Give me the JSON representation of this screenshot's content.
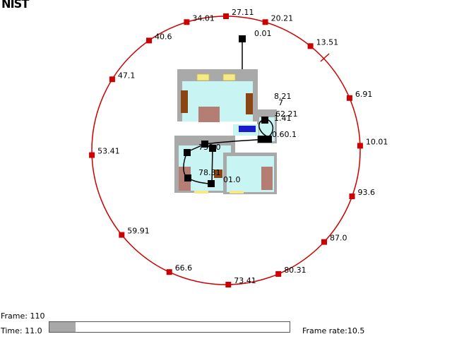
{
  "app": {
    "logo_text": "NIST"
  },
  "status": {
    "frame_prefix": "Frame: ",
    "frame": "110",
    "time_prefix": "Time: ",
    "time": "11.0",
    "frame_rate_prefix": "Frame rate:",
    "frame_rate": "10.5"
  },
  "slider": {
    "progress": 0.11
  },
  "ring": {
    "color": "#cc0000",
    "markers": [
      {
        "angle_deg": -90,
        "label": "27.11"
      },
      {
        "angle_deg": -73,
        "label": "20.21"
      },
      {
        "angle_deg": -51,
        "label": "13.51"
      },
      {
        "angle_deg": -23,
        "label": "6.91"
      },
      {
        "angle_deg": -2,
        "label": "10.01"
      },
      {
        "angle_deg": 20,
        "label": "93.6"
      },
      {
        "angle_deg": 43,
        "label": "87.0"
      },
      {
        "angle_deg": 67,
        "label": "80.31"
      },
      {
        "angle_deg": 89,
        "label": "73.41"
      },
      {
        "angle_deg": 115,
        "label": "66.6"
      },
      {
        "angle_deg": 141,
        "label": "59.91"
      },
      {
        "angle_deg": 178,
        "label": "53.41"
      },
      {
        "angle_deg": 212,
        "label": "47.1"
      },
      {
        "angle_deg": 235,
        "label": "40.6"
      },
      {
        "angle_deg": 253,
        "label": "34.01"
      }
    ]
  },
  "overlay_labels": [
    {
      "text": "0.01"
    },
    {
      "text": "8.21"
    },
    {
      "text": "7"
    },
    {
      "text": "62.21"
    },
    {
      "text": "1.41"
    },
    {
      "text": "0.60.1"
    },
    {
      "text": "730.0"
    },
    {
      "text": "78.31"
    },
    {
      "text": "01.0"
    }
  ]
}
